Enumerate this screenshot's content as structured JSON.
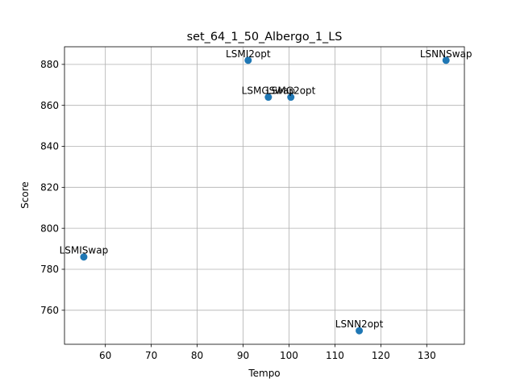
{
  "chart_data": {
    "type": "scatter",
    "title": "set_64_1_50_Albergo_1_LS",
    "xlabel": "Tempo",
    "ylabel": "Score",
    "xlim": [
      51.1,
      138.2
    ],
    "ylim": [
      743.4,
      888.6
    ],
    "xticks": [
      60,
      70,
      80,
      90,
      100,
      110,
      120,
      130
    ],
    "yticks": [
      760,
      780,
      800,
      820,
      840,
      860,
      880
    ],
    "grid": true,
    "marker_color": "#1f77b4",
    "points": [
      {
        "label": "LSMI2opt",
        "x": 91.1,
        "y": 882
      },
      {
        "label": "LSNNSwap",
        "x": 134.2,
        "y": 882
      },
      {
        "label": "LSMGSwap",
        "x": 95.5,
        "y": 864
      },
      {
        "label": "LSMG2opt",
        "x": 100.4,
        "y": 864
      },
      {
        "label": "LSMISwap",
        "x": 55.3,
        "y": 786
      },
      {
        "label": "LSNN2opt",
        "x": 115.3,
        "y": 750
      }
    ]
  }
}
